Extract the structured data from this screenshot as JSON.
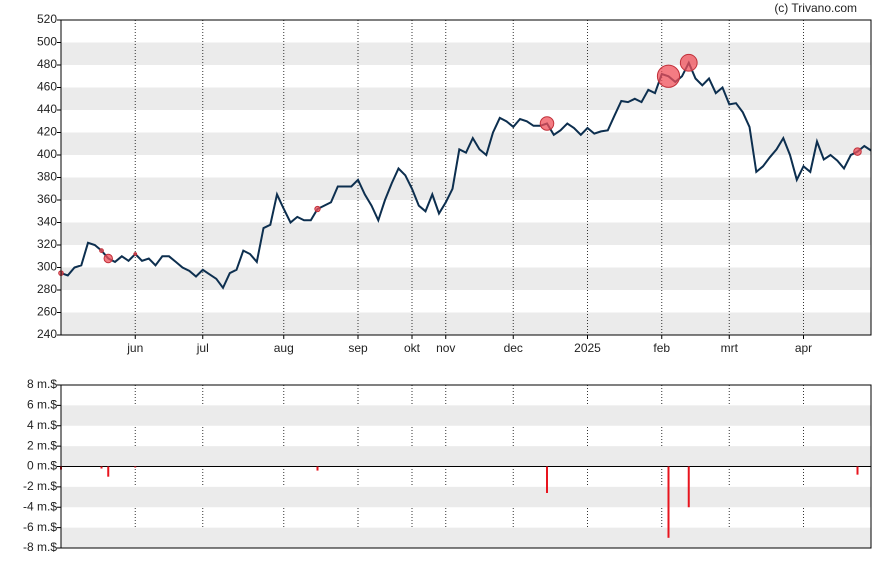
{
  "chart_data": [
    {
      "type": "line",
      "watermark": "(c) Trivano.com",
      "color": "#0d2f4f",
      "marker_color": "#f0505a",
      "categories": [
        null,
        null,
        null,
        null,
        null,
        null,
        null,
        null,
        null,
        null,
        null,
        "jun",
        null,
        null,
        null,
        null,
        null,
        null,
        null,
        null,
        null,
        "jul",
        null,
        null,
        null,
        null,
        null,
        null,
        null,
        null,
        null,
        null,
        null,
        "aug",
        null,
        null,
        null,
        null,
        null,
        null,
        null,
        null,
        null,
        null,
        "sep",
        null,
        null,
        null,
        null,
        null,
        null,
        null,
        "okt",
        null,
        null,
        null,
        null,
        "nov",
        null,
        null,
        null,
        null,
        null,
        null,
        null,
        null,
        null,
        "dec",
        null,
        null,
        null,
        null,
        null,
        null,
        null,
        null,
        null,
        null,
        "2025",
        null,
        null,
        null,
        null,
        null,
        null,
        null,
        null,
        null,
        null,
        "feb",
        null,
        null,
        null,
        null,
        null,
        null,
        null,
        null,
        null,
        "mrt",
        null,
        null,
        null,
        null,
        null,
        null,
        null,
        null,
        null,
        null,
        "apr",
        null,
        null,
        null,
        null,
        null,
        null,
        null,
        null,
        null,
        null
      ],
      "values": [
        295,
        293,
        300,
        302,
        322,
        320,
        315,
        308,
        305,
        310,
        306,
        312,
        306,
        308,
        302,
        310,
        310,
        305,
        300,
        297,
        292,
        298,
        294,
        290,
        282,
        295,
        298,
        315,
        312,
        305,
        335,
        338,
        365,
        352,
        340,
        345,
        342,
        342,
        352,
        355,
        358,
        372,
        372,
        372,
        378,
        365,
        355,
        342,
        360,
        375,
        388,
        382,
        370,
        355,
        350,
        365,
        348,
        358,
        370,
        405,
        402,
        415,
        405,
        400,
        420,
        433,
        430,
        425,
        432,
        430,
        426,
        426,
        428,
        418,
        422,
        428,
        424,
        418,
        424,
        419,
        421,
        422,
        435,
        448,
        447,
        450,
        447,
        458,
        455,
        472,
        470,
        465,
        470,
        482,
        468,
        462,
        468,
        455,
        460,
        445,
        446,
        438,
        425,
        385,
        390,
        398,
        405,
        415,
        400,
        378,
        390,
        385,
        412,
        396,
        400,
        395,
        388,
        400,
        403,
        408,
        404
      ],
      "ylim": [
        240,
        520
      ],
      "yticks": [
        240,
        260,
        280,
        300,
        320,
        340,
        360,
        380,
        400,
        420,
        440,
        460,
        480,
        500,
        520
      ],
      "grid": true
    },
    {
      "type": "bar",
      "color": "#e8141e",
      "values": [
        -0.3,
        null,
        null,
        null,
        null,
        null,
        -0.2,
        -1.0,
        null,
        null,
        null,
        -0.1,
        null,
        null,
        null,
        null,
        null,
        null,
        null,
        null,
        null,
        null,
        null,
        null,
        null,
        null,
        null,
        null,
        null,
        null,
        null,
        null,
        null,
        null,
        null,
        null,
        null,
        null,
        -0.4,
        null,
        null,
        null,
        null,
        null,
        null,
        null,
        null,
        null,
        null,
        null,
        null,
        null,
        null,
        null,
        null,
        null,
        null,
        null,
        null,
        null,
        null,
        null,
        null,
        null,
        null,
        null,
        null,
        null,
        null,
        null,
        null,
        null,
        -2.6,
        null,
        null,
        null,
        null,
        null,
        null,
        null,
        null,
        null,
        null,
        null,
        null,
        null,
        null,
        null,
        null,
        null,
        -7.0,
        null,
        null,
        -4.0,
        null,
        null,
        null,
        null,
        null,
        null,
        null,
        null,
        null,
        null,
        null,
        null,
        null,
        null,
        null,
        null,
        null,
        null,
        null,
        null,
        null,
        null,
        null,
        null,
        -0.8,
        null,
        null
      ],
      "ylim": [
        -8,
        8
      ],
      "yticks": [
        {
          "value": -8,
          "label": "-8 m.$"
        },
        {
          "value": -6,
          "label": "-6 m.$"
        },
        {
          "value": -4,
          "label": "-4 m.$"
        },
        {
          "value": -2,
          "label": "-2 m.$"
        },
        {
          "value": 0,
          "label": "0 m.$"
        },
        {
          "value": 2,
          "label": "2 m.$"
        },
        {
          "value": 4,
          "label": "4 m.$"
        },
        {
          "value": 6,
          "label": "6 m.$"
        },
        {
          "value": 8,
          "label": "8 m.$"
        }
      ],
      "grid": true
    }
  ]
}
